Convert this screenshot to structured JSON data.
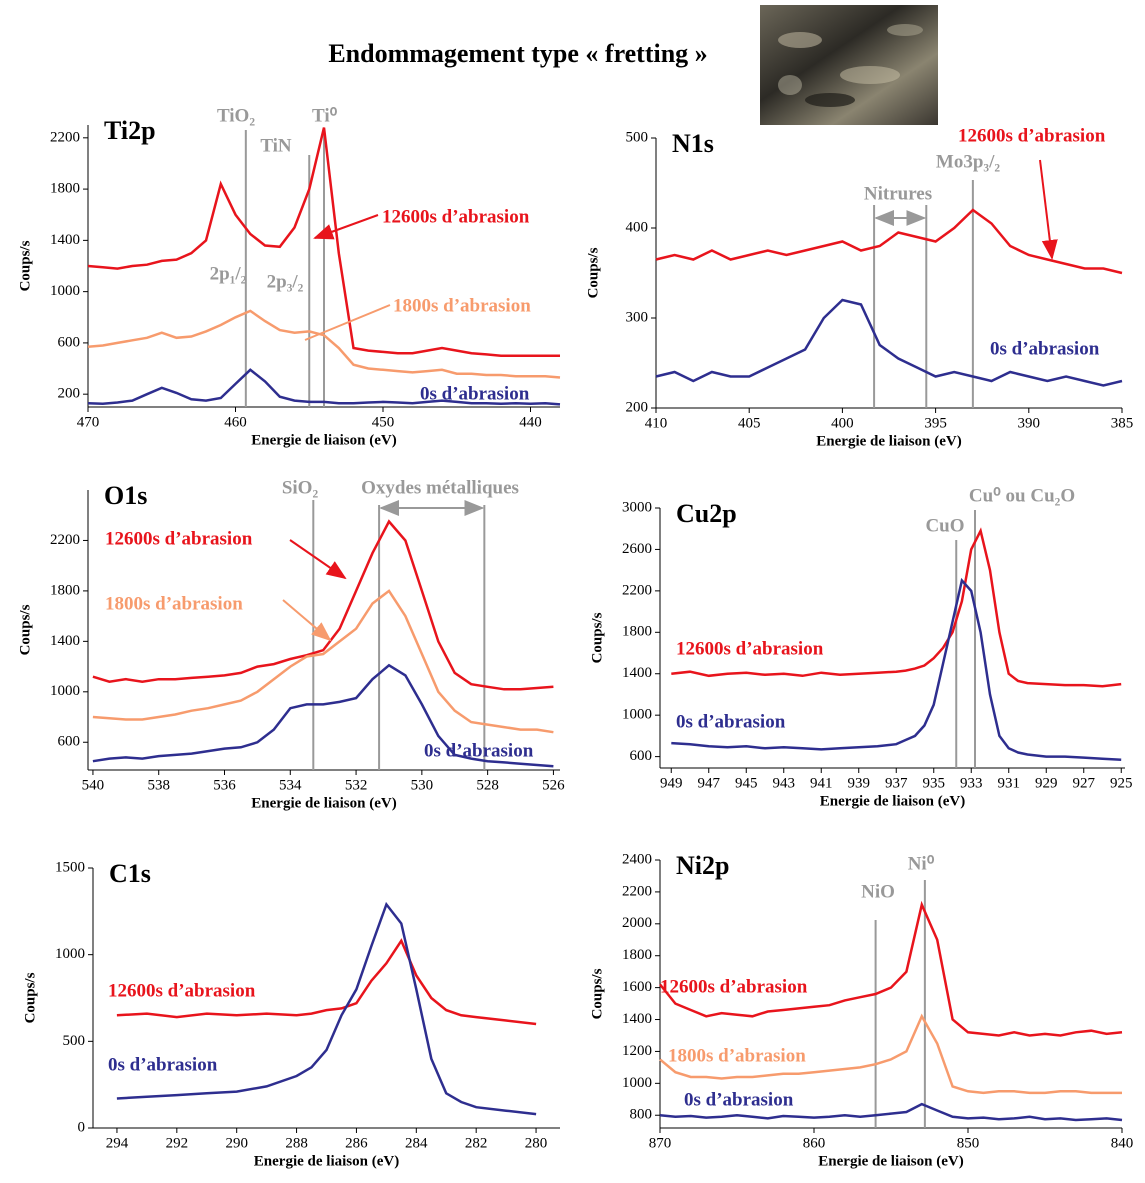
{
  "header": {
    "title": "Endommagement type « fretting »"
  },
  "chart_data": [
    {
      "type": "line",
      "title": "Ti2p",
      "x_label": "Energie de liaison (eV)",
      "y_label": "Coups/s",
      "xlim": [
        470,
        438
      ],
      "xticks": [
        470,
        460,
        450,
        440
      ],
      "ylim": [
        100,
        2300
      ],
      "yticks": [
        200,
        600,
        1000,
        1400,
        1800,
        2200
      ],
      "x": [
        470,
        469,
        468,
        467,
        466,
        465,
        464,
        463,
        462,
        461,
        460,
        459,
        458,
        457,
        456,
        455,
        454,
        453,
        452,
        451,
        450,
        449,
        448,
        447,
        446,
        445,
        444,
        443,
        442,
        441,
        440,
        439,
        438
      ],
      "series": [
        {
          "name": "12600s d’abrasion",
          "color": "#e8141c",
          "values": [
            1200,
            1190,
            1180,
            1200,
            1210,
            1240,
            1250,
            1300,
            1400,
            1840,
            1600,
            1450,
            1360,
            1350,
            1500,
            1800,
            2280,
            1300,
            560,
            540,
            530,
            520,
            520,
            540,
            560,
            540,
            520,
            510,
            500,
            500,
            500,
            500,
            500
          ]
        },
        {
          "name": "1800s d’abrasion",
          "color": "#f79b6d",
          "values": [
            570,
            580,
            600,
            620,
            640,
            680,
            640,
            650,
            690,
            740,
            800,
            850,
            770,
            700,
            680,
            690,
            660,
            560,
            430,
            400,
            390,
            380,
            370,
            380,
            390,
            360,
            360,
            350,
            350,
            340,
            340,
            340,
            330
          ]
        },
        {
          "name": "0s d’abrasion",
          "color": "#2e2e8f",
          "values": [
            130,
            125,
            135,
            150,
            200,
            250,
            210,
            160,
            150,
            170,
            280,
            390,
            300,
            180,
            150,
            140,
            140,
            130,
            130,
            135,
            140,
            135,
            130,
            140,
            150,
            140,
            130,
            130,
            125,
            130,
            125,
            130,
            120
          ]
        }
      ],
      "annotations": [
        {
          "text": "TiO₂",
          "x": 459.3
        },
        {
          "text": "TiN",
          "x": 455
        },
        {
          "text": "Ti⁰",
          "x": 454
        }
      ],
      "labels": [
        "2p₁/₂",
        "2p₃/₂"
      ]
    },
    {
      "type": "line",
      "title": "N1s",
      "x_label": "Energie de liaison (eV)",
      "y_label": "Coups/s",
      "xlim": [
        410,
        385
      ],
      "xticks": [
        410,
        405,
        400,
        395,
        390,
        385
      ],
      "ylim": [
        200,
        500
      ],
      "yticks": [
        200,
        300,
        400,
        500
      ],
      "x": [
        410,
        409,
        408,
        407,
        406,
        405,
        404,
        403,
        402,
        401,
        400,
        399,
        398,
        397,
        396,
        395,
        394,
        393,
        392,
        391,
        390,
        389,
        388,
        387,
        386,
        385
      ],
      "series": [
        {
          "name": "12600s d’abrasion",
          "color": "#e8141c",
          "values": [
            365,
            370,
            365,
            375,
            365,
            370,
            375,
            370,
            375,
            380,
            385,
            375,
            380,
            395,
            390,
            385,
            400,
            420,
            405,
            380,
            370,
            365,
            360,
            355,
            355,
            350
          ]
        },
        {
          "name": "0s d’abrasion",
          "color": "#2e2e8f",
          "values": [
            235,
            240,
            230,
            240,
            235,
            235,
            245,
            255,
            265,
            300,
            320,
            315,
            270,
            255,
            245,
            235,
            240,
            235,
            230,
            240,
            235,
            230,
            235,
            230,
            225,
            230
          ]
        }
      ],
      "annotations": [
        {
          "text": "",
          "x": 398.3
        },
        {
          "text": "",
          "x": 395.5
        },
        {
          "text": "Mo3p₃/₂",
          "x": 393
        }
      ],
      "labels": [
        "Nitrures"
      ]
    },
    {
      "type": "line",
      "title": "O1s",
      "x_label": "Energie de liaison (eV)",
      "y_label": "Coups/s",
      "xlim": [
        540.15,
        525.8
      ],
      "xticks": [
        540,
        538,
        536,
        534,
        532,
        530,
        528,
        526
      ],
      "ylim": [
        380,
        2600
      ],
      "yticks": [
        600,
        1000,
        1400,
        1800,
        2200
      ],
      "x": [
        540,
        539.5,
        539,
        538.5,
        538,
        537.5,
        537,
        536.5,
        536,
        535.5,
        535,
        534.5,
        534,
        533.5,
        533,
        532.5,
        532,
        531.5,
        531,
        530.5,
        530,
        529.5,
        529,
        528.5,
        528,
        527.5,
        527,
        526.5,
        526
      ],
      "series": [
        {
          "name": "12600s d’abrasion",
          "color": "#e8141c",
          "values": [
            1120,
            1080,
            1100,
            1080,
            1100,
            1100,
            1110,
            1120,
            1130,
            1150,
            1200,
            1220,
            1260,
            1290,
            1330,
            1500,
            1800,
            2100,
            2350,
            2200,
            1800,
            1400,
            1150,
            1060,
            1040,
            1020,
            1020,
            1030,
            1040
          ]
        },
        {
          "name": "1800s d’abrasion",
          "color": "#f79b6d",
          "values": [
            800,
            790,
            780,
            780,
            800,
            820,
            850,
            870,
            900,
            930,
            1000,
            1100,
            1200,
            1280,
            1300,
            1400,
            1500,
            1700,
            1800,
            1600,
            1300,
            1000,
            850,
            760,
            740,
            720,
            700,
            700,
            680
          ]
        },
        {
          "name": "0s d’abrasion",
          "color": "#2e2e8f",
          "values": [
            450,
            470,
            480,
            470,
            490,
            500,
            510,
            530,
            550,
            560,
            600,
            700,
            870,
            900,
            900,
            920,
            950,
            1100,
            1210,
            1130,
            900,
            650,
            500,
            470,
            450,
            440,
            430,
            420,
            410
          ]
        }
      ],
      "annotations": [
        {
          "text": "SiO₂",
          "x": 533.3
        },
        {
          "text": "",
          "x": 531.3
        },
        {
          "text": "",
          "x": 528.1
        }
      ],
      "labels": [
        "Oxydes métalliques"
      ]
    },
    {
      "type": "line",
      "title": "Cu2p",
      "x_label": "Energie de liaison (eV)",
      "y_label": "Coups/s",
      "xlim": [
        949.6,
        924.8
      ],
      "xticks": [
        949,
        947,
        945,
        943,
        941,
        939,
        937,
        935,
        933,
        931,
        929,
        927,
        925
      ],
      "ylim": [
        490,
        3000
      ],
      "yticks": [
        600,
        1000,
        1400,
        1800,
        2200,
        2600,
        3000
      ],
      "x": [
        949,
        948,
        947,
        946,
        945,
        944,
        943,
        942,
        941,
        940,
        939,
        938,
        937,
        936.5,
        936,
        935.5,
        935,
        934.5,
        934,
        933.5,
        933,
        932.5,
        932,
        931.5,
        931,
        930.5,
        930,
        929,
        928,
        927,
        926,
        925
      ],
      "series": [
        {
          "name": "12600s d’abrasion",
          "color": "#e8141c",
          "values": [
            1400,
            1420,
            1380,
            1400,
            1410,
            1390,
            1400,
            1380,
            1410,
            1390,
            1400,
            1410,
            1420,
            1430,
            1450,
            1480,
            1550,
            1650,
            1800,
            2100,
            2600,
            2780,
            2400,
            1800,
            1400,
            1330,
            1310,
            1300,
            1290,
            1290,
            1280,
            1300
          ]
        },
        {
          "name": "0s d’abrasion",
          "color": "#2e2e8f",
          "values": [
            730,
            720,
            700,
            690,
            700,
            680,
            690,
            680,
            670,
            680,
            690,
            700,
            720,
            760,
            800,
            900,
            1100,
            1500,
            1900,
            2300,
            2200,
            1800,
            1200,
            800,
            680,
            640,
            620,
            600,
            600,
            590,
            580,
            570
          ]
        }
      ],
      "annotations": [
        {
          "text": "CuO",
          "x": 933.8
        },
        {
          "text": "Cu⁰ ou Cu₂O",
          "x": 932.8
        }
      ],
      "labels": []
    },
    {
      "type": "line",
      "title": "C1s",
      "x_label": "Energie de liaison (eV)",
      "y_label": "Coups/s",
      "xlim": [
        294.8,
        279.2
      ],
      "xticks": [
        294,
        292,
        290,
        288,
        286,
        284,
        282,
        280
      ],
      "ylim": [
        0,
        1500
      ],
      "yticks": [
        0,
        500,
        1000,
        1500
      ],
      "x": [
        294,
        293,
        292,
        291,
        290,
        289,
        288,
        287.5,
        287,
        286.5,
        286,
        285.5,
        285,
        284.5,
        284,
        283.5,
        283,
        282.5,
        282,
        281,
        280
      ],
      "series": [
        {
          "name": "12600s d’abrasion",
          "color": "#e8141c",
          "values": [
            650,
            660,
            640,
            660,
            650,
            660,
            650,
            660,
            680,
            690,
            720,
            850,
            950,
            1080,
            880,
            750,
            680,
            650,
            640,
            620,
            600
          ]
        },
        {
          "name": "0s d’abrasion",
          "color": "#2e2e8f",
          "values": [
            170,
            180,
            190,
            200,
            210,
            240,
            300,
            350,
            450,
            650,
            800,
            1050,
            1290,
            1180,
            800,
            400,
            200,
            150,
            120,
            100,
            80
          ]
        }
      ],
      "annotations": [],
      "labels": []
    },
    {
      "type": "line",
      "title": "Ni2p",
      "x_label": "Energie de liaison (eV)",
      "y_label": "Coups/s",
      "xlim": [
        870,
        840
      ],
      "xticks": [
        870,
        860,
        850,
        840
      ],
      "ylim": [
        720,
        2400
      ],
      "yticks": [
        800,
        1000,
        1200,
        1400,
        1600,
        1800,
        2000,
        2200,
        2400
      ],
      "x": [
        870,
        869,
        868,
        867,
        866,
        865,
        864,
        863,
        862,
        861,
        860,
        859,
        858,
        857,
        856,
        855,
        854,
        853,
        852,
        851,
        850,
        849,
        848,
        847,
        846,
        845,
        844,
        843,
        842,
        841,
        840
      ],
      "series": [
        {
          "name": "12600s d’abrasion",
          "color": "#e8141c",
          "values": [
            1620,
            1500,
            1460,
            1420,
            1440,
            1430,
            1420,
            1450,
            1460,
            1470,
            1480,
            1490,
            1520,
            1540,
            1560,
            1600,
            1700,
            2120,
            1900,
            1400,
            1320,
            1310,
            1300,
            1320,
            1300,
            1310,
            1300,
            1320,
            1330,
            1310,
            1320
          ]
        },
        {
          "name": "1800s d’abrasion",
          "color": "#f79b6d",
          "values": [
            1150,
            1070,
            1040,
            1040,
            1030,
            1040,
            1040,
            1050,
            1060,
            1060,
            1070,
            1080,
            1090,
            1100,
            1120,
            1150,
            1200,
            1420,
            1250,
            980,
            950,
            940,
            950,
            950,
            940,
            940,
            950,
            950,
            940,
            940,
            940
          ]
        },
        {
          "name": "0s d’abrasion",
          "color": "#2e2e8f",
          "values": [
            800,
            790,
            795,
            785,
            790,
            800,
            790,
            780,
            795,
            790,
            785,
            790,
            800,
            790,
            800,
            810,
            820,
            870,
            830,
            790,
            780,
            785,
            775,
            780,
            790,
            775,
            780,
            770,
            775,
            780,
            770
          ]
        }
      ],
      "annotations": [
        {
          "text": "NiO",
          "x": 856
        },
        {
          "text": "Ni⁰",
          "x": 852.8
        }
      ],
      "labels": []
    }
  ]
}
